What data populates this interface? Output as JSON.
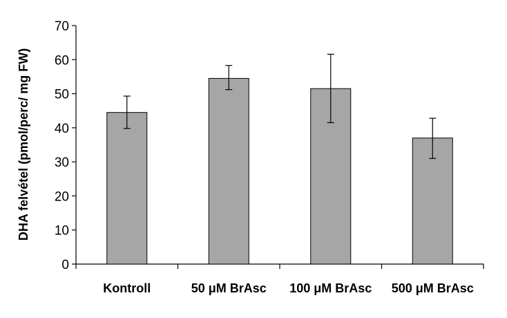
{
  "chart_data": {
    "type": "bar",
    "title": "",
    "xlabel": "",
    "ylabel": "DHA felvétel (pmol/perc/ mg FW)",
    "ylim": [
      0,
      70
    ],
    "yticks": [
      0,
      10,
      20,
      30,
      40,
      50,
      60,
      70
    ],
    "grid": false,
    "legend": "none",
    "categories": [
      "Kontroll",
      "50 μM BrAsc",
      "100 μM BrAsc",
      "500 μM BrAsc"
    ],
    "values": [
      44.5,
      54.5,
      51.5,
      37
    ],
    "error_low": [
      39.8,
      51.2,
      41.5,
      31
    ],
    "error_high": [
      49.3,
      58.3,
      61.6,
      42.8
    ],
    "bar_color": "#a6a6a6",
    "bar_edge_color": "#000000"
  }
}
